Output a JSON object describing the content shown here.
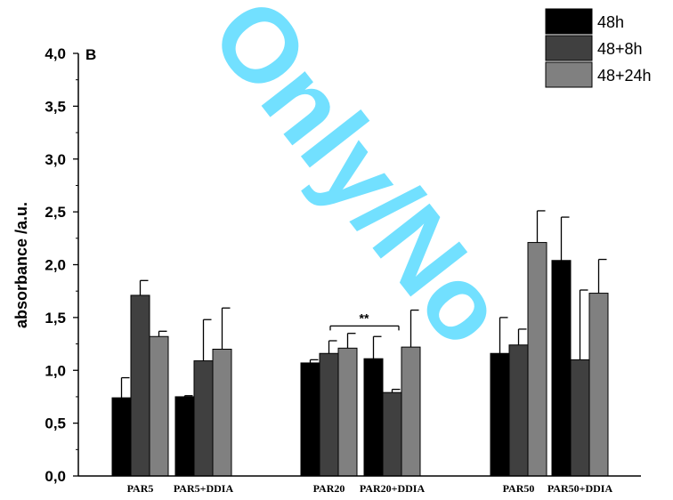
{
  "watermark": "Only/No",
  "panel_label": "B",
  "annotation": "**",
  "chart_data": {
    "type": "bar",
    "title": "",
    "xlabel": "",
    "ylabel": "absorbance /a.u.",
    "ylim": [
      0,
      4.0
    ],
    "yticks": [
      "0,0",
      "0,5",
      "1,0",
      "1,5",
      "2,0",
      "2,5",
      "3,0",
      "3,5",
      "4,0"
    ],
    "categories": [
      "PAR5",
      "PAR5+DDIA",
      "PAR20",
      "PAR20+DDIA",
      "PAR50",
      "PAR50+DDIA"
    ],
    "legend_position": "top-right",
    "grid": false,
    "series": [
      {
        "name": "48h",
        "color": "#000000",
        "values": [
          0.74,
          0.75,
          1.07,
          1.11,
          1.16,
          2.04
        ],
        "errors": [
          0.19,
          0.01,
          0.03,
          0.21,
          0.34,
          0.41
        ]
      },
      {
        "name": "48+8h",
        "color": "#404040",
        "values": [
          1.71,
          1.09,
          1.16,
          0.79,
          1.24,
          1.1
        ],
        "errors": [
          0.14,
          0.39,
          0.12,
          0.03,
          0.15,
          0.66
        ]
      },
      {
        "name": "48+24h",
        "color": "#808080",
        "values": [
          1.32,
          1.2,
          1.21,
          1.22,
          2.21,
          1.73
        ],
        "errors": [
          0.05,
          0.39,
          0.14,
          0.35,
          0.3,
          0.32
        ]
      }
    ],
    "significance": {
      "between": [
        "PAR20",
        "PAR20+DDIA"
      ],
      "label": "**",
      "y": 1.42
    }
  }
}
